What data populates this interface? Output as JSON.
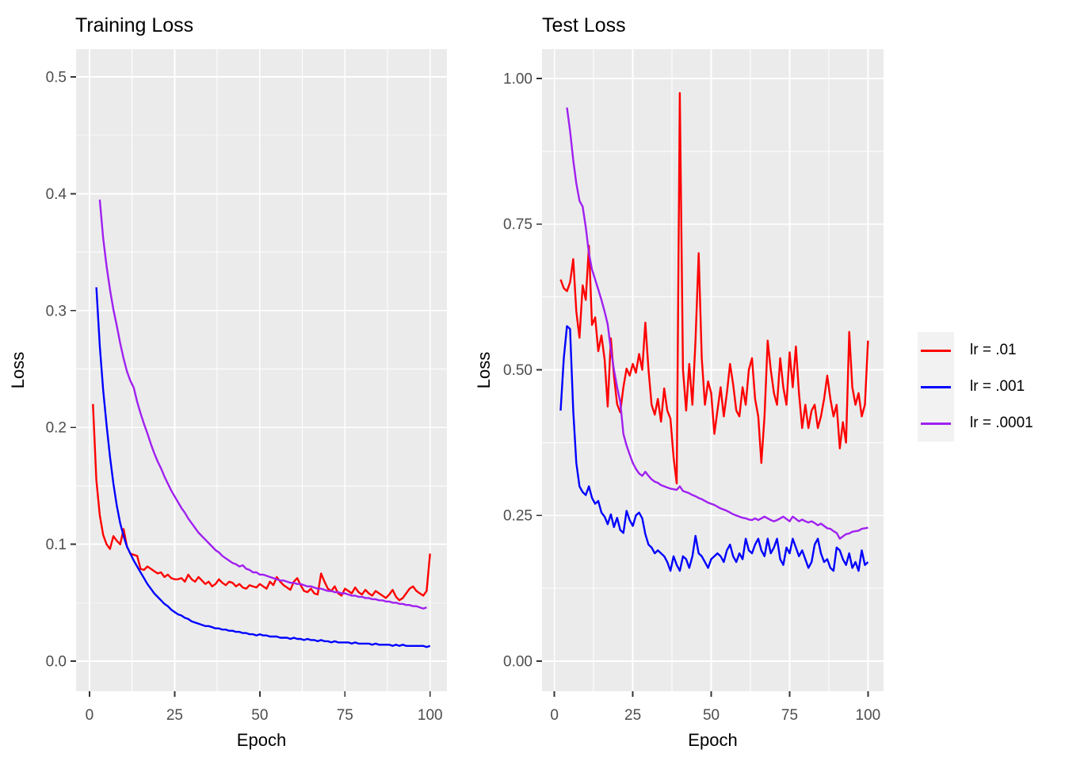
{
  "style": {
    "page_bg": "#FFFFFF",
    "panel_bg": "#EBEBEB",
    "grid_color": "#FFFFFF",
    "tick_color": "#333333",
    "tick_label_color": "#4D4D4D",
    "title_color": "#000000",
    "axis_title_color": "#000000",
    "series_red": "#FF0000",
    "series_blue": "#0000FF",
    "series_purple": "#A020F0"
  },
  "legend": {
    "items": [
      {
        "label": "lr = .01",
        "color": "#FF0000"
      },
      {
        "label": "lr = .001",
        "color": "#0000FF"
      },
      {
        "label": "lr = .0001",
        "color": "#A020F0"
      }
    ]
  },
  "chart_data": [
    {
      "type": "line",
      "title": "Training Loss",
      "xlabel": "Epoch",
      "ylabel": "Loss",
      "x_ticks": [
        0,
        25,
        50,
        75,
        100
      ],
      "x_tick_labels": [
        "0",
        "25",
        "50",
        "75",
        "100"
      ],
      "y_ticks": [
        0,
        0.1,
        0.2,
        0.3,
        0.4,
        0.5
      ],
      "y_tick_labels": [
        "0.0",
        "0.1",
        "0.2",
        "0.3",
        "0.4",
        "0.5"
      ],
      "xlim": [
        -3.95,
        104.95
      ],
      "ylim": [
        -0.0258,
        0.5238
      ],
      "grid": true,
      "legend_position": "shared-right",
      "series": [
        {
          "name": "lr = .01",
          "color": "#FF0000",
          "epoch_start": 1,
          "values": [
            0.22,
            0.155,
            0.125,
            0.108,
            0.1,
            0.096,
            0.107,
            0.103,
            0.1,
            0.113,
            0.098,
            0.092,
            0.091,
            0.09,
            0.079,
            0.078,
            0.081,
            0.079,
            0.077,
            0.075,
            0.076,
            0.072,
            0.074,
            0.071,
            0.07,
            0.07,
            0.071,
            0.068,
            0.074,
            0.07,
            0.068,
            0.072,
            0.069,
            0.066,
            0.068,
            0.064,
            0.066,
            0.07,
            0.067,
            0.065,
            0.068,
            0.067,
            0.064,
            0.066,
            0.063,
            0.062,
            0.065,
            0.064,
            0.063,
            0.066,
            0.064,
            0.062,
            0.068,
            0.065,
            0.072,
            0.068,
            0.065,
            0.063,
            0.061,
            0.068,
            0.071,
            0.065,
            0.06,
            0.059,
            0.062,
            0.058,
            0.057,
            0.075,
            0.068,
            0.062,
            0.06,
            0.064,
            0.058,
            0.056,
            0.062,
            0.06,
            0.058,
            0.063,
            0.059,
            0.057,
            0.061,
            0.058,
            0.056,
            0.06,
            0.058,
            0.056,
            0.054,
            0.057,
            0.061,
            0.055,
            0.052,
            0.054,
            0.058,
            0.062,
            0.064,
            0.06,
            0.058,
            0.056,
            0.06,
            0.092
          ]
        },
        {
          "name": "lr = .001",
          "color": "#0000FF",
          "epoch_start": 2,
          "values": [
            0.32,
            0.27,
            0.232,
            0.202,
            0.175,
            0.152,
            0.133,
            0.118,
            0.107,
            0.098,
            0.092,
            0.086,
            0.081,
            0.076,
            0.071,
            0.066,
            0.062,
            0.058,
            0.055,
            0.052,
            0.049,
            0.047,
            0.044,
            0.042,
            0.04,
            0.039,
            0.037,
            0.036,
            0.034,
            0.033,
            0.032,
            0.031,
            0.03,
            0.03,
            0.029,
            0.028,
            0.028,
            0.027,
            0.027,
            0.026,
            0.026,
            0.025,
            0.025,
            0.024,
            0.024,
            0.023,
            0.023,
            0.022,
            0.023,
            0.022,
            0.022,
            0.021,
            0.021,
            0.021,
            0.02,
            0.02,
            0.02,
            0.019,
            0.02,
            0.019,
            0.019,
            0.018,
            0.019,
            0.018,
            0.018,
            0.017,
            0.018,
            0.017,
            0.017,
            0.016,
            0.017,
            0.016,
            0.016,
            0.016,
            0.016,
            0.015,
            0.016,
            0.015,
            0.015,
            0.015,
            0.015,
            0.014,
            0.015,
            0.014,
            0.014,
            0.014,
            0.014,
            0.013,
            0.014,
            0.013,
            0.014,
            0.013,
            0.013,
            0.013,
            0.013,
            0.013,
            0.013,
            0.012,
            0.013
          ]
        },
        {
          "name": "lr = .0001",
          "color": "#A020F0",
          "epoch_start": 3,
          "values": [
            0.395,
            0.362,
            0.338,
            0.318,
            0.301,
            0.287,
            0.272,
            0.259,
            0.248,
            0.24,
            0.234,
            0.222,
            0.212,
            0.203,
            0.195,
            0.186,
            0.178,
            0.171,
            0.165,
            0.158,
            0.152,
            0.146,
            0.141,
            0.136,
            0.131,
            0.127,
            0.122,
            0.118,
            0.114,
            0.11,
            0.107,
            0.104,
            0.101,
            0.098,
            0.095,
            0.093,
            0.09,
            0.088,
            0.086,
            0.084,
            0.083,
            0.081,
            0.082,
            0.079,
            0.078,
            0.076,
            0.076,
            0.074,
            0.074,
            0.073,
            0.072,
            0.071,
            0.07,
            0.069,
            0.069,
            0.068,
            0.067,
            0.067,
            0.066,
            0.066,
            0.065,
            0.064,
            0.064,
            0.063,
            0.062,
            0.062,
            0.061,
            0.06,
            0.06,
            0.059,
            0.059,
            0.058,
            0.058,
            0.057,
            0.056,
            0.056,
            0.055,
            0.055,
            0.054,
            0.054,
            0.053,
            0.053,
            0.052,
            0.052,
            0.051,
            0.051,
            0.05,
            0.05,
            0.049,
            0.049,
            0.048,
            0.048,
            0.047,
            0.047,
            0.046,
            0.045,
            0.046
          ]
        }
      ]
    },
    {
      "type": "line",
      "title": "Test Loss",
      "xlabel": "Epoch",
      "ylabel": "Loss",
      "x_ticks": [
        0,
        25,
        50,
        75,
        100
      ],
      "x_tick_labels": [
        "0",
        "25",
        "50",
        "75",
        "100"
      ],
      "y_ticks": [
        0,
        0.25,
        0.5,
        0.75,
        1.0
      ],
      "y_tick_labels": [
        "0.00",
        "0.25",
        "0.50",
        "0.75",
        "1.00"
      ],
      "xlim": [
        -3.95,
        104.95
      ],
      "ylim": [
        -0.0517,
        1.0503
      ],
      "grid": true,
      "legend_position": "shared-right",
      "series": [
        {
          "name": "lr = .01",
          "color": "#FF0000",
          "epoch_start": 2,
          "values": [
            0.655,
            0.64,
            0.635,
            0.65,
            0.69,
            0.6,
            0.555,
            0.645,
            0.62,
            0.713,
            0.577,
            0.59,
            0.532,
            0.559,
            0.518,
            0.437,
            0.554,
            0.489,
            0.441,
            0.427,
            0.47,
            0.502,
            0.49,
            0.51,
            0.495,
            0.527,
            0.5,
            0.581,
            0.5,
            0.44,
            0.423,
            0.45,
            0.411,
            0.468,
            0.43,
            0.416,
            0.35,
            0.305,
            0.975,
            0.5,
            0.43,
            0.51,
            0.44,
            0.55,
            0.7,
            0.52,
            0.44,
            0.48,
            0.46,
            0.39,
            0.43,
            0.47,
            0.42,
            0.46,
            0.51,
            0.475,
            0.43,
            0.42,
            0.47,
            0.44,
            0.5,
            0.52,
            0.45,
            0.42,
            0.34,
            0.42,
            0.55,
            0.5,
            0.46,
            0.44,
            0.52,
            0.47,
            0.44,
            0.53,
            0.47,
            0.54,
            0.46,
            0.4,
            0.44,
            0.4,
            0.43,
            0.44,
            0.4,
            0.42,
            0.45,
            0.49,
            0.45,
            0.42,
            0.44,
            0.365,
            0.41,
            0.375,
            0.565,
            0.47,
            0.44,
            0.46,
            0.42,
            0.44,
            0.55
          ]
        },
        {
          "name": "lr = .001",
          "color": "#0000FF",
          "epoch_start": 2,
          "values": [
            0.43,
            0.52,
            0.575,
            0.57,
            0.43,
            0.34,
            0.3,
            0.29,
            0.285,
            0.3,
            0.28,
            0.27,
            0.275,
            0.255,
            0.248,
            0.235,
            0.252,
            0.23,
            0.246,
            0.225,
            0.22,
            0.258,
            0.242,
            0.232,
            0.25,
            0.255,
            0.245,
            0.218,
            0.2,
            0.195,
            0.185,
            0.19,
            0.185,
            0.18,
            0.17,
            0.155,
            0.18,
            0.165,
            0.155,
            0.18,
            0.175,
            0.16,
            0.18,
            0.215,
            0.185,
            0.18,
            0.17,
            0.16,
            0.175,
            0.18,
            0.185,
            0.18,
            0.17,
            0.19,
            0.2,
            0.18,
            0.17,
            0.185,
            0.175,
            0.21,
            0.19,
            0.185,
            0.2,
            0.21,
            0.19,
            0.18,
            0.21,
            0.185,
            0.195,
            0.21,
            0.175,
            0.165,
            0.195,
            0.185,
            0.21,
            0.195,
            0.18,
            0.19,
            0.175,
            0.16,
            0.17,
            0.2,
            0.21,
            0.185,
            0.17,
            0.175,
            0.16,
            0.155,
            0.195,
            0.19,
            0.175,
            0.165,
            0.185,
            0.16,
            0.17,
            0.155,
            0.19,
            0.165,
            0.17
          ]
        },
        {
          "name": "lr = .0001",
          "color": "#A020F0",
          "epoch_start": 4,
          "values": [
            0.95,
            0.91,
            0.86,
            0.82,
            0.79,
            0.78,
            0.745,
            0.7,
            0.672,
            0.655,
            0.638,
            0.62,
            0.6,
            0.578,
            0.535,
            0.5,
            0.47,
            0.445,
            0.39,
            0.37,
            0.355,
            0.34,
            0.33,
            0.322,
            0.318,
            0.325,
            0.318,
            0.312,
            0.308,
            0.306,
            0.302,
            0.3,
            0.298,
            0.296,
            0.295,
            0.294,
            0.3,
            0.292,
            0.29,
            0.288,
            0.285,
            0.283,
            0.28,
            0.278,
            0.275,
            0.272,
            0.27,
            0.268,
            0.265,
            0.262,
            0.26,
            0.258,
            0.255,
            0.252,
            0.25,
            0.248,
            0.246,
            0.245,
            0.243,
            0.242,
            0.245,
            0.242,
            0.245,
            0.248,
            0.245,
            0.242,
            0.24,
            0.242,
            0.245,
            0.248,
            0.244,
            0.24,
            0.248,
            0.244,
            0.24,
            0.243,
            0.24,
            0.238,
            0.24,
            0.237,
            0.233,
            0.236,
            0.232,
            0.228,
            0.227,
            0.223,
            0.22,
            0.21,
            0.214,
            0.218,
            0.219,
            0.222,
            0.223,
            0.224,
            0.227,
            0.228,
            0.229
          ]
        }
      ]
    }
  ]
}
